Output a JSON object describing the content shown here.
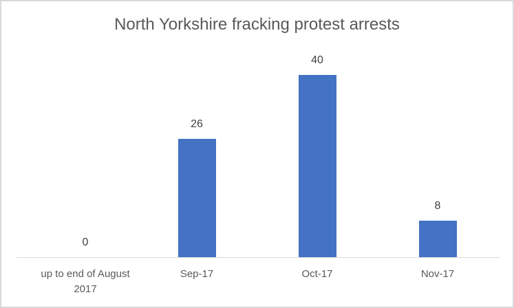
{
  "chart_data": {
    "type": "bar",
    "title": "North Yorkshire fracking protest arrests",
    "categories": [
      "up to end of August 2017",
      "Sep-17",
      "Oct-17",
      "Nov-17"
    ],
    "values": [
      0,
      26,
      40,
      8
    ],
    "xlabel": "",
    "ylabel": "",
    "ylim": [
      0,
      45
    ],
    "grid": false,
    "legend": null,
    "bar_color": "#4472c4",
    "data_labels": [
      "0",
      "26",
      "40",
      "8"
    ]
  },
  "labels": {
    "cat0_line1": "up to end of August",
    "cat0_line2": "2017"
  }
}
